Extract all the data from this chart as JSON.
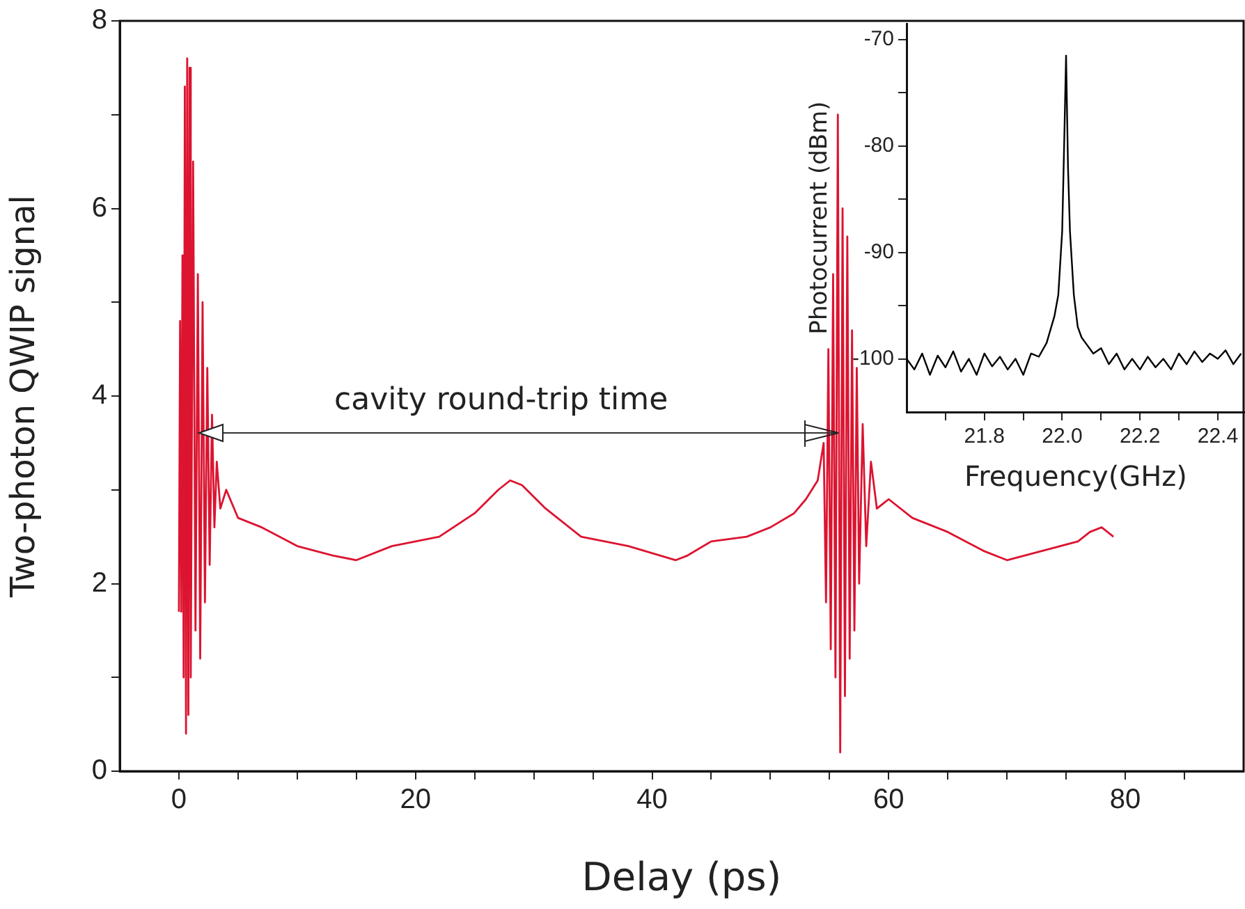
{
  "chart_data": [
    {
      "type": "line",
      "xlabel": "Delay (ps)",
      "ylabel": "Two-photon QWIP signal",
      "annotations": [
        "cavity round-trip time"
      ],
      "x": [
        0,
        0.1,
        0.2,
        0.3,
        0.4,
        0.5,
        0.6,
        0.7,
        0.8,
        0.9,
        1.0,
        1.2,
        1.4,
        1.6,
        1.8,
        2.0,
        2.2,
        2.4,
        2.6,
        2.8,
        3.0,
        3.2,
        3.5,
        4,
        5,
        7,
        10,
        13,
        15,
        18,
        22,
        25,
        27,
        28,
        29,
        31,
        34,
        38,
        42,
        43,
        45,
        48,
        50,
        52,
        53,
        54,
        54.5,
        54.7,
        54.9,
        55.1,
        55.3,
        55.5,
        55.7,
        55.9,
        56.1,
        56.3,
        56.5,
        56.7,
        56.9,
        57.1,
        57.3,
        57.5,
        57.8,
        58.1,
        58.5,
        59,
        60,
        62,
        65,
        68,
        70,
        73,
        76,
        77,
        78,
        79
      ],
      "series": [
        {
          "color": "#dc1430",
          "values": [
            1.7,
            4.8,
            1.7,
            5.5,
            1.0,
            7.3,
            0.4,
            7.6,
            0.6,
            7.5,
            1.0,
            6.5,
            1.5,
            5.3,
            1.2,
            5.0,
            1.8,
            4.3,
            2.2,
            3.8,
            2.6,
            3.3,
            2.8,
            3.0,
            2.7,
            2.6,
            2.4,
            2.3,
            2.25,
            2.4,
            2.5,
            2.75,
            3.0,
            3.1,
            3.05,
            2.8,
            2.5,
            2.4,
            2.25,
            2.3,
            2.45,
            2.5,
            2.6,
            2.75,
            2.9,
            3.1,
            3.5,
            1.8,
            4.5,
            1.3,
            5.3,
            1.0,
            7.0,
            0.2,
            6.0,
            0.8,
            5.7,
            1.2,
            4.7,
            1.5,
            4.3,
            2.0,
            3.7,
            2.4,
            3.3,
            2.8,
            2.9,
            2.7,
            2.55,
            2.35,
            2.25,
            2.35,
            2.45,
            2.55,
            2.6,
            2.5
          ]
        }
      ],
      "xlim": [
        -5,
        90
      ],
      "ylim": [
        0,
        8
      ],
      "xticks": [
        0,
        {
          "value": 5,
          "label": null
        },
        {
          "value": 10,
          "label": null
        },
        {
          "value": 15,
          "label": null
        },
        20,
        {
          "value": 25,
          "label": null
        },
        {
          "value": 30,
          "label": null
        },
        {
          "value": 35,
          "label": null
        },
        40,
        {
          "value": 45,
          "label": null
        },
        {
          "value": 50,
          "label": null
        },
        {
          "value": 55,
          "label": null
        },
        60,
        {
          "value": 65,
          "label": null
        },
        {
          "value": 70,
          "label": null
        },
        {
          "value": 75,
          "label": null
        },
        80,
        {
          "value": 85,
          "label": null
        }
      ],
      "yticks": [
        0,
        {
          "value": 1,
          "label": null
        },
        2,
        {
          "value": 3,
          "label": null
        },
        4,
        {
          "value": 5,
          "label": null
        },
        6,
        {
          "value": 7,
          "label": null
        },
        8
      ]
    },
    {
      "type": "line",
      "xlabel": "Frequency(GHz)",
      "ylabel": "Photocurrent (dBm)",
      "x": [
        21.6,
        21.62,
        21.64,
        21.66,
        21.68,
        21.7,
        21.72,
        21.74,
        21.76,
        21.78,
        21.8,
        21.82,
        21.84,
        21.86,
        21.88,
        21.9,
        21.92,
        21.94,
        21.96,
        21.98,
        21.99,
        22.0,
        22.005,
        22.01,
        22.015,
        22.02,
        22.03,
        22.04,
        22.05,
        22.06,
        22.08,
        22.1,
        22.12,
        22.14,
        22.16,
        22.18,
        22.2,
        22.22,
        22.24,
        22.26,
        22.28,
        22.3,
        22.32,
        22.34,
        22.36,
        22.38,
        22.4,
        22.42,
        22.44,
        22.46
      ],
      "series": [
        {
          "color": "#000000",
          "values": [
            -100,
            -101,
            -99.5,
            -101.5,
            -99.7,
            -100.8,
            -99.3,
            -101.2,
            -100,
            -101.5,
            -99.5,
            -100.7,
            -99.8,
            -101,
            -100,
            -101.5,
            -99.5,
            -99.8,
            -98.5,
            -96,
            -94,
            -88,
            -80,
            -71.5,
            -82,
            -88,
            -94,
            -97,
            -98,
            -98.5,
            -99.5,
            -99,
            -100.5,
            -99.5,
            -101,
            -100,
            -101,
            -99.8,
            -100.8,
            -100,
            -101,
            -99.5,
            -100.5,
            -99.3,
            -100.3,
            -99.5,
            -100,
            -99.2,
            -100.5,
            -99.5
          ]
        }
      ],
      "xlim": [
        21.6,
        22.47
      ],
      "ylim": [
        -105,
        -68.5
      ],
      "xticks": [
        {
          "value": 21.7,
          "label": null
        },
        21.8,
        {
          "value": 21.9,
          "label": null
        },
        {
          "value": 22,
          "label": "22.0"
        },
        {
          "value": 22.1,
          "label": null
        },
        22.2,
        {
          "value": 22.3,
          "label": null
        },
        22.4
      ],
      "yticks": [
        -70,
        {
          "value": -75,
          "label": null
        },
        -80,
        {
          "value": -85,
          "label": null
        },
        -90,
        {
          "value": -95,
          "label": null
        },
        -100
      ]
    }
  ]
}
